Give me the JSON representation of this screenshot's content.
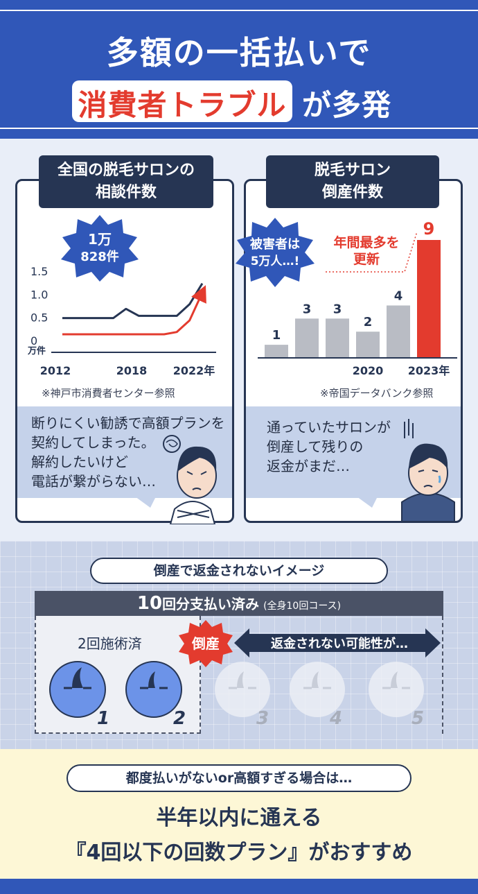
{
  "header": {
    "title_line1": "多額の一括払いで",
    "title_highlight": "消費者トラブル",
    "title_rest": "が多発"
  },
  "left_panel": {
    "tab_line1": "全国の脱毛サロンの",
    "tab_line2": "相談件数",
    "burst_line1": "1万",
    "burst_line2": "828件",
    "source": "※神戸市消費者センター参照",
    "speech_lines": [
      "断りにくい勧誘で高額プランを",
      "契約してしまった。",
      "解約したいけど",
      "電話が繋がらない…"
    ]
  },
  "right_panel": {
    "tab_line1": "脱毛サロン",
    "tab_line2": "倒産件数",
    "burst_line1": "被害者は",
    "burst_line2": "5万人…!",
    "record_line1": "年間最多を",
    "record_line2": "更新",
    "source": "※帝国データバンク参照",
    "speech_lines": [
      "通っていたサロンが",
      "倒産して残りの",
      "返金がまだ…"
    ]
  },
  "chart_data": [
    {
      "type": "line",
      "x_ticks": [
        "2012",
        "2018",
        "2022年"
      ],
      "y_ticks": [
        "1.5",
        "1.0",
        "0.5",
        "0"
      ],
      "ylabel": "万件",
      "ylim": [
        0,
        1.5
      ],
      "series": [
        {
          "values": [
            0.5,
            0.5,
            0.5,
            0.5,
            0.5,
            0.7,
            0.55,
            0.55,
            0.55,
            0.55,
            0.8,
            1.25
          ],
          "color": "#263553"
        },
        {
          "values": [
            0.15,
            0.15,
            0.15,
            0.15,
            0.15,
            0.15,
            0.15,
            0.15,
            0.15,
            0.2,
            0.45,
            1.05
          ],
          "color": "#e33b2e"
        }
      ]
    },
    {
      "type": "bar",
      "categories": [
        "",
        "",
        "",
        "2020",
        "",
        "2023年"
      ],
      "values": [
        1,
        3,
        3,
        2,
        4,
        9
      ],
      "colors": [
        "#b9bcc4",
        "#b9bcc4",
        "#b9bcc4",
        "#b9bcc4",
        "#b9bcc4",
        "#e33b2e"
      ],
      "ylim": [
        0,
        9
      ]
    }
  ],
  "middle": {
    "pill": "倒産で返金されないイメージ",
    "bar_main_num": "10",
    "bar_main": "回分支払い済み",
    "bar_sub": "(全身10回コース)",
    "done_label": "2回施術済",
    "bankrupt": "倒産",
    "arrow_text": "返金されない可能性が…",
    "sessions": [
      "1",
      "2",
      "3",
      "4",
      "5"
    ]
  },
  "bottom": {
    "pill": "都度払いがないor高額すぎる場合は…",
    "line1": "半年以内に通える",
    "line2": "『4回以下の回数プラン』がおすすめ"
  }
}
